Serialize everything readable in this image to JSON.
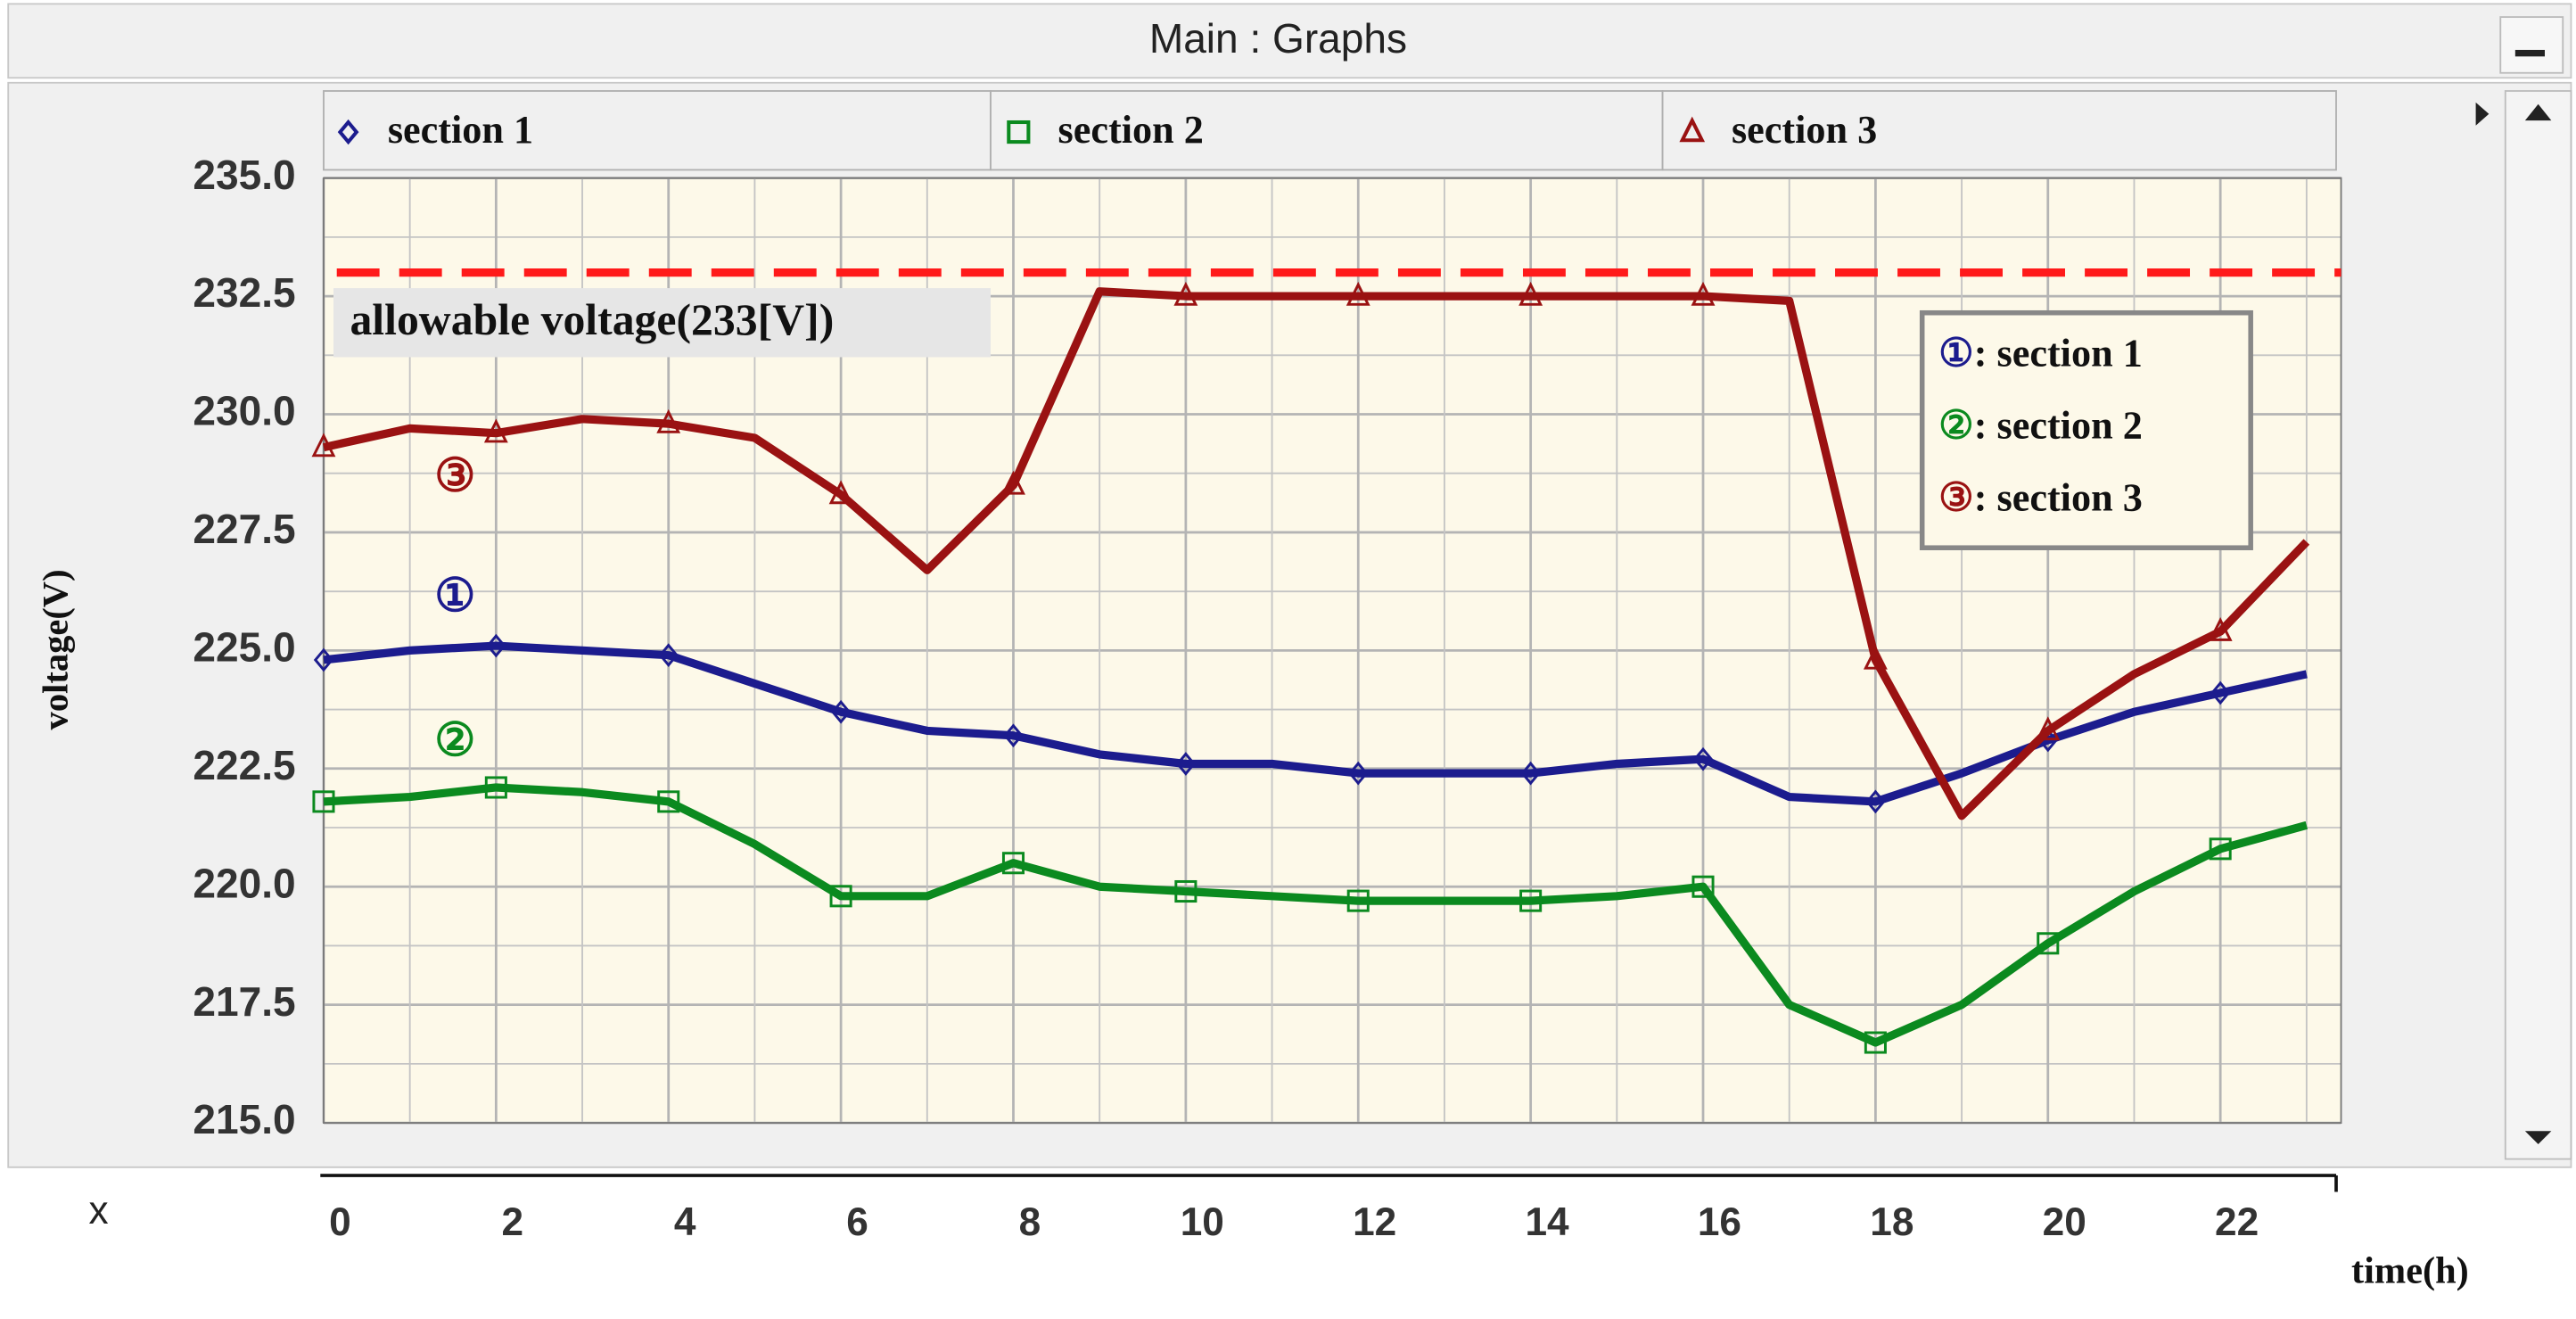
{
  "window_title": "Main : Graphs",
  "chart_data": {
    "type": "line",
    "y_label": "voltage(V)",
    "x_label": "time(h)",
    "x_axis_name": "x",
    "annotation": "allowable voltage(233[V])",
    "reference_line": {
      "value": 233,
      "color": "#ff1a1a"
    },
    "grid": true,
    "xlim": [
      0,
      23.4
    ],
    "ylim": [
      215,
      235
    ],
    "xticks": [
      0,
      2,
      4,
      6,
      8,
      10,
      12,
      14,
      16,
      18,
      20,
      22
    ],
    "xminor_ticks": [
      1,
      3,
      5,
      7,
      9,
      11,
      13,
      15,
      17,
      19,
      21,
      23
    ],
    "yticks": [
      {
        "value": 215,
        "label": "215.0"
      },
      {
        "value": 217.5,
        "label": "217.5"
      },
      {
        "value": 220,
        "label": "220.0"
      },
      {
        "value": 222.5,
        "label": "222.5"
      },
      {
        "value": 225,
        "label": "225.0"
      },
      {
        "value": 227.5,
        "label": "227.5"
      },
      {
        "value": 230,
        "label": "230.0"
      },
      {
        "value": 232.5,
        "label": "232.5"
      },
      {
        "value": 235,
        "label": "235.0"
      }
    ],
    "yminor_ticks": [
      216.25,
      218.75,
      221.25,
      223.75,
      226.25,
      228.75,
      231.25,
      233.75
    ],
    "x": [
      0,
      1,
      2,
      3,
      4,
      5,
      6,
      7,
      8,
      9,
      10,
      11,
      12,
      13,
      14,
      15,
      16,
      17,
      18,
      19,
      20,
      21,
      22,
      23
    ],
    "series": [
      {
        "name": "section 1",
        "color": "#1c1c8e",
        "marker": "diamond",
        "values": [
          224.8,
          225.0,
          225.1,
          225.0,
          224.9,
          224.3,
          223.7,
          223.3,
          223.2,
          222.8,
          222.6,
          222.6,
          222.4,
          222.4,
          222.4,
          222.6,
          222.7,
          221.9,
          221.8,
          222.4,
          223.1,
          223.7,
          224.1,
          224.5
        ]
      },
      {
        "name": "section 2",
        "color": "#0b8a1f",
        "marker": "square",
        "values": [
          221.8,
          221.9,
          222.1,
          222.0,
          221.8,
          220.9,
          219.8,
          219.8,
          220.5,
          220.0,
          219.9,
          219.8,
          219.7,
          219.7,
          219.7,
          219.8,
          220.0,
          217.5,
          216.7,
          217.5,
          218.8,
          219.9,
          220.8,
          221.3
        ]
      },
      {
        "name": "section 3",
        "color": "#9a1212",
        "marker": "triangle",
        "values": [
          229.3,
          229.7,
          229.6,
          229.9,
          229.8,
          229.5,
          228.3,
          226.7,
          228.5,
          232.6,
          232.5,
          232.5,
          232.5,
          232.5,
          232.5,
          232.5,
          232.5,
          232.4,
          224.8,
          221.5,
          223.3,
          224.5,
          225.4,
          227.3
        ]
      }
    ],
    "line_labels": [
      "①",
      "②",
      "③"
    ],
    "legend_box": [
      {
        "symbol": "①",
        "text": ": section 1"
      },
      {
        "symbol": "②",
        "text": ": section 2"
      },
      {
        "symbol": "③",
        "text": ": section 3"
      }
    ]
  }
}
